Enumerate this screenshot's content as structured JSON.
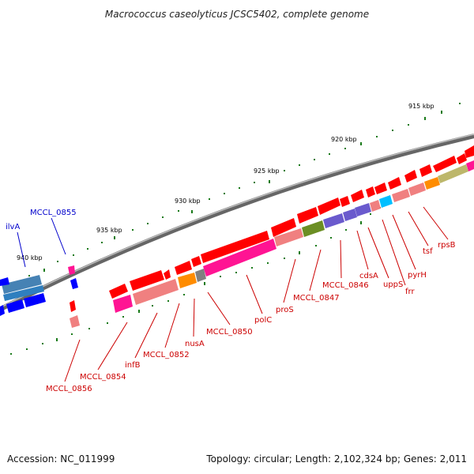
{
  "title": "Macrococcus caseolyticus JCSC5402, complete genome",
  "footer": {
    "accession": "Accession: NC_011999",
    "topology": "Topology: circular; Length: 2,102,324 bp; Genes: 2,011"
  },
  "colors": {
    "red": "#ff0000",
    "pink": "#ff1493",
    "salmon": "#f08080",
    "orange": "#ff8c00",
    "olive": "#6b8e23",
    "khaki": "#bdb76b",
    "slateblue": "#6a5acd",
    "cyan": "#00bfff",
    "steelblue": "#4682b4",
    "blue": "#0000ff",
    "gray": "#808080",
    "label_red": "#cc0000",
    "label_blue": "#0000cc",
    "tick_green": "#1a7a1a",
    "backbone": "#7a7a7a"
  },
  "scale": {
    "labels": [
      "915 kbp",
      "920 kbp",
      "925 kbp",
      "930 kbp",
      "935 kbp",
      "940 kbp"
    ]
  },
  "genes": [
    {
      "name": "rpsB"
    },
    {
      "name": "tsf"
    },
    {
      "name": "pyrH"
    },
    {
      "name": "frr"
    },
    {
      "name": "uppS"
    },
    {
      "name": "cdsA"
    },
    {
      "name": "MCCL_0846"
    },
    {
      "name": "MCCL_0847"
    },
    {
      "name": "proS"
    },
    {
      "name": "polC"
    },
    {
      "name": "MCCL_0850"
    },
    {
      "name": "nusA"
    },
    {
      "name": "MCCL_0852"
    },
    {
      "name": "infB"
    },
    {
      "name": "MCCL_0854"
    },
    {
      "name": "MCCL_0855"
    },
    {
      "name": "MCCL_0856"
    },
    {
      "name": "ilvA"
    }
  ]
}
